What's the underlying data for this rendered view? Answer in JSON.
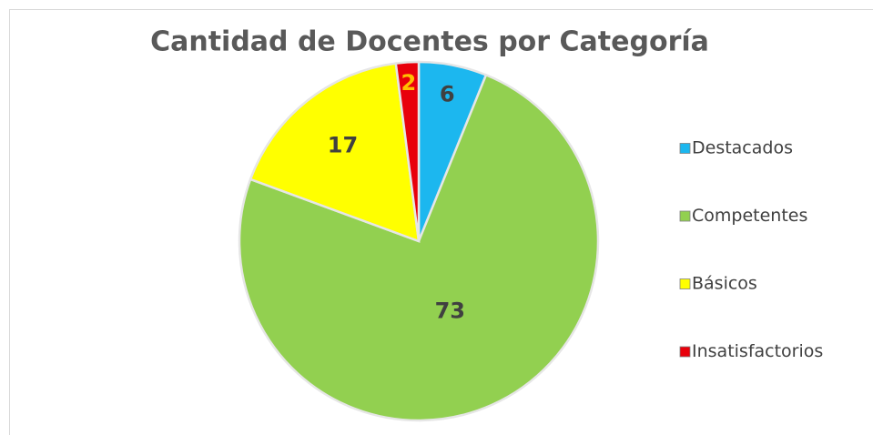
{
  "chart_data": {
    "type": "pie",
    "title": "Cantidad de Docentes por Categoría",
    "categories": [
      "Destacados",
      "Competentes",
      "Básicos",
      "Insatisfactorios"
    ],
    "values": [
      6,
      73,
      17,
      2
    ],
    "colors": [
      "#1cb7ef",
      "#92d050",
      "#ffff00",
      "#e8000b"
    ],
    "label_colors": [
      "#404040",
      "#404040",
      "#404040",
      "#ffc000"
    ],
    "legend": "right"
  }
}
